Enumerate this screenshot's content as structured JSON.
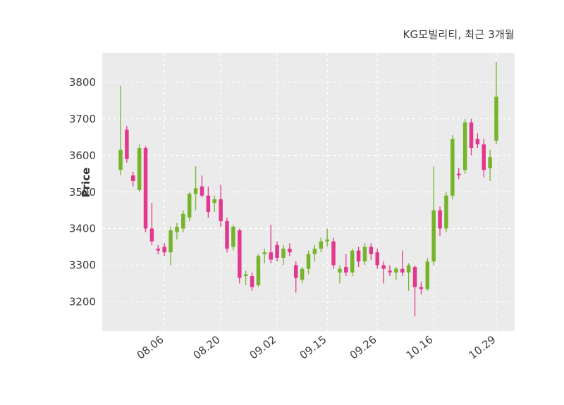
{
  "header": {
    "title": "KG모빌리티, 최근 3개월"
  },
  "chart_data": {
    "type": "candlestick",
    "title": "KG모빌리티, 최근 3개월",
    "xlabel": "",
    "ylabel": "Price",
    "ylim": [
      3120,
      3880
    ],
    "yticks": [
      3200,
      3300,
      3400,
      3500,
      3600,
      3700,
      3800
    ],
    "xtick_labels": [
      "08.06",
      "08.20",
      "09.02",
      "09.15",
      "09.26",
      "10.16",
      "10.29"
    ],
    "xtick_indices": [
      7,
      16,
      25,
      33,
      41,
      50,
      60
    ],
    "grid": "dashed-white",
    "plot_background": "#ebebeb",
    "up_color": "#76b52b",
    "down_color": "#e2398f",
    "candles_ohlc": [
      [
        3560,
        3790,
        3545,
        3615
      ],
      [
        3670,
        3680,
        3580,
        3590
      ],
      [
        3545,
        3555,
        3515,
        3530
      ],
      [
        3505,
        3630,
        3500,
        3620
      ],
      [
        3620,
        3625,
        3390,
        3400
      ],
      [
        3400,
        3470,
        3355,
        3365
      ],
      [
        3345,
        3355,
        3330,
        3340
      ],
      [
        3350,
        3360,
        3325,
        3335
      ],
      [
        3335,
        3405,
        3300,
        3395
      ],
      [
        3390,
        3415,
        3370,
        3405
      ],
      [
        3400,
        3450,
        3390,
        3440
      ],
      [
        3430,
        3500,
        3420,
        3495
      ],
      [
        3495,
        3570,
        3450,
        3510
      ],
      [
        3515,
        3545,
        3485,
        3490
      ],
      [
        3490,
        3515,
        3430,
        3445
      ],
      [
        3470,
        3490,
        3445,
        3480
      ],
      [
        3480,
        3520,
        3405,
        3420
      ],
      [
        3420,
        3430,
        3335,
        3345
      ],
      [
        3350,
        3410,
        3340,
        3405
      ],
      [
        3395,
        3400,
        3250,
        3265
      ],
      [
        3270,
        3285,
        3245,
        3275
      ],
      [
        3270,
        3280,
        3230,
        3240
      ],
      [
        3245,
        3330,
        3240,
        3325
      ],
      [
        3330,
        3345,
        3305,
        3335
      ],
      [
        3335,
        3410,
        3305,
        3315
      ],
      [
        3355,
        3365,
        3310,
        3320
      ],
      [
        3320,
        3355,
        3300,
        3345
      ],
      [
        3345,
        3360,
        3325,
        3335
      ],
      [
        3300,
        3310,
        3225,
        3265
      ],
      [
        3260,
        3295,
        3250,
        3290
      ],
      [
        3290,
        3340,
        3275,
        3330
      ],
      [
        3330,
        3355,
        3310,
        3345
      ],
      [
        3345,
        3375,
        3335,
        3365
      ],
      [
        3365,
        3400,
        3350,
        3370
      ],
      [
        3365,
        3375,
        3290,
        3300
      ],
      [
        3280,
        3300,
        3250,
        3290
      ],
      [
        3295,
        3330,
        3270,
        3280
      ],
      [
        3280,
        3345,
        3270,
        3340
      ],
      [
        3340,
        3350,
        3295,
        3310
      ],
      [
        3310,
        3360,
        3300,
        3350
      ],
      [
        3350,
        3360,
        3315,
        3330
      ],
      [
        3335,
        3345,
        3290,
        3300
      ],
      [
        3300,
        3310,
        3250,
        3290
      ],
      [
        3285,
        3300,
        3270,
        3280
      ],
      [
        3280,
        3295,
        3260,
        3290
      ],
      [
        3290,
        3340,
        3270,
        3280
      ],
      [
        3280,
        3305,
        3230,
        3300
      ],
      [
        3295,
        3300,
        3160,
        3240
      ],
      [
        3240,
        3255,
        3220,
        3235
      ],
      [
        3235,
        3320,
        3230,
        3310
      ],
      [
        3310,
        3570,
        3300,
        3450
      ],
      [
        3450,
        3460,
        3380,
        3400
      ],
      [
        3400,
        3500,
        3390,
        3490
      ],
      [
        3490,
        3655,
        3480,
        3645
      ],
      [
        3550,
        3565,
        3535,
        3545
      ],
      [
        3560,
        3700,
        3550,
        3690
      ],
      [
        3690,
        3700,
        3600,
        3620
      ],
      [
        3645,
        3660,
        3620,
        3630
      ],
      [
        3630,
        3645,
        3540,
        3560
      ],
      [
        3565,
        3615,
        3530,
        3595
      ],
      [
        3640,
        3855,
        3630,
        3760
      ]
    ]
  }
}
